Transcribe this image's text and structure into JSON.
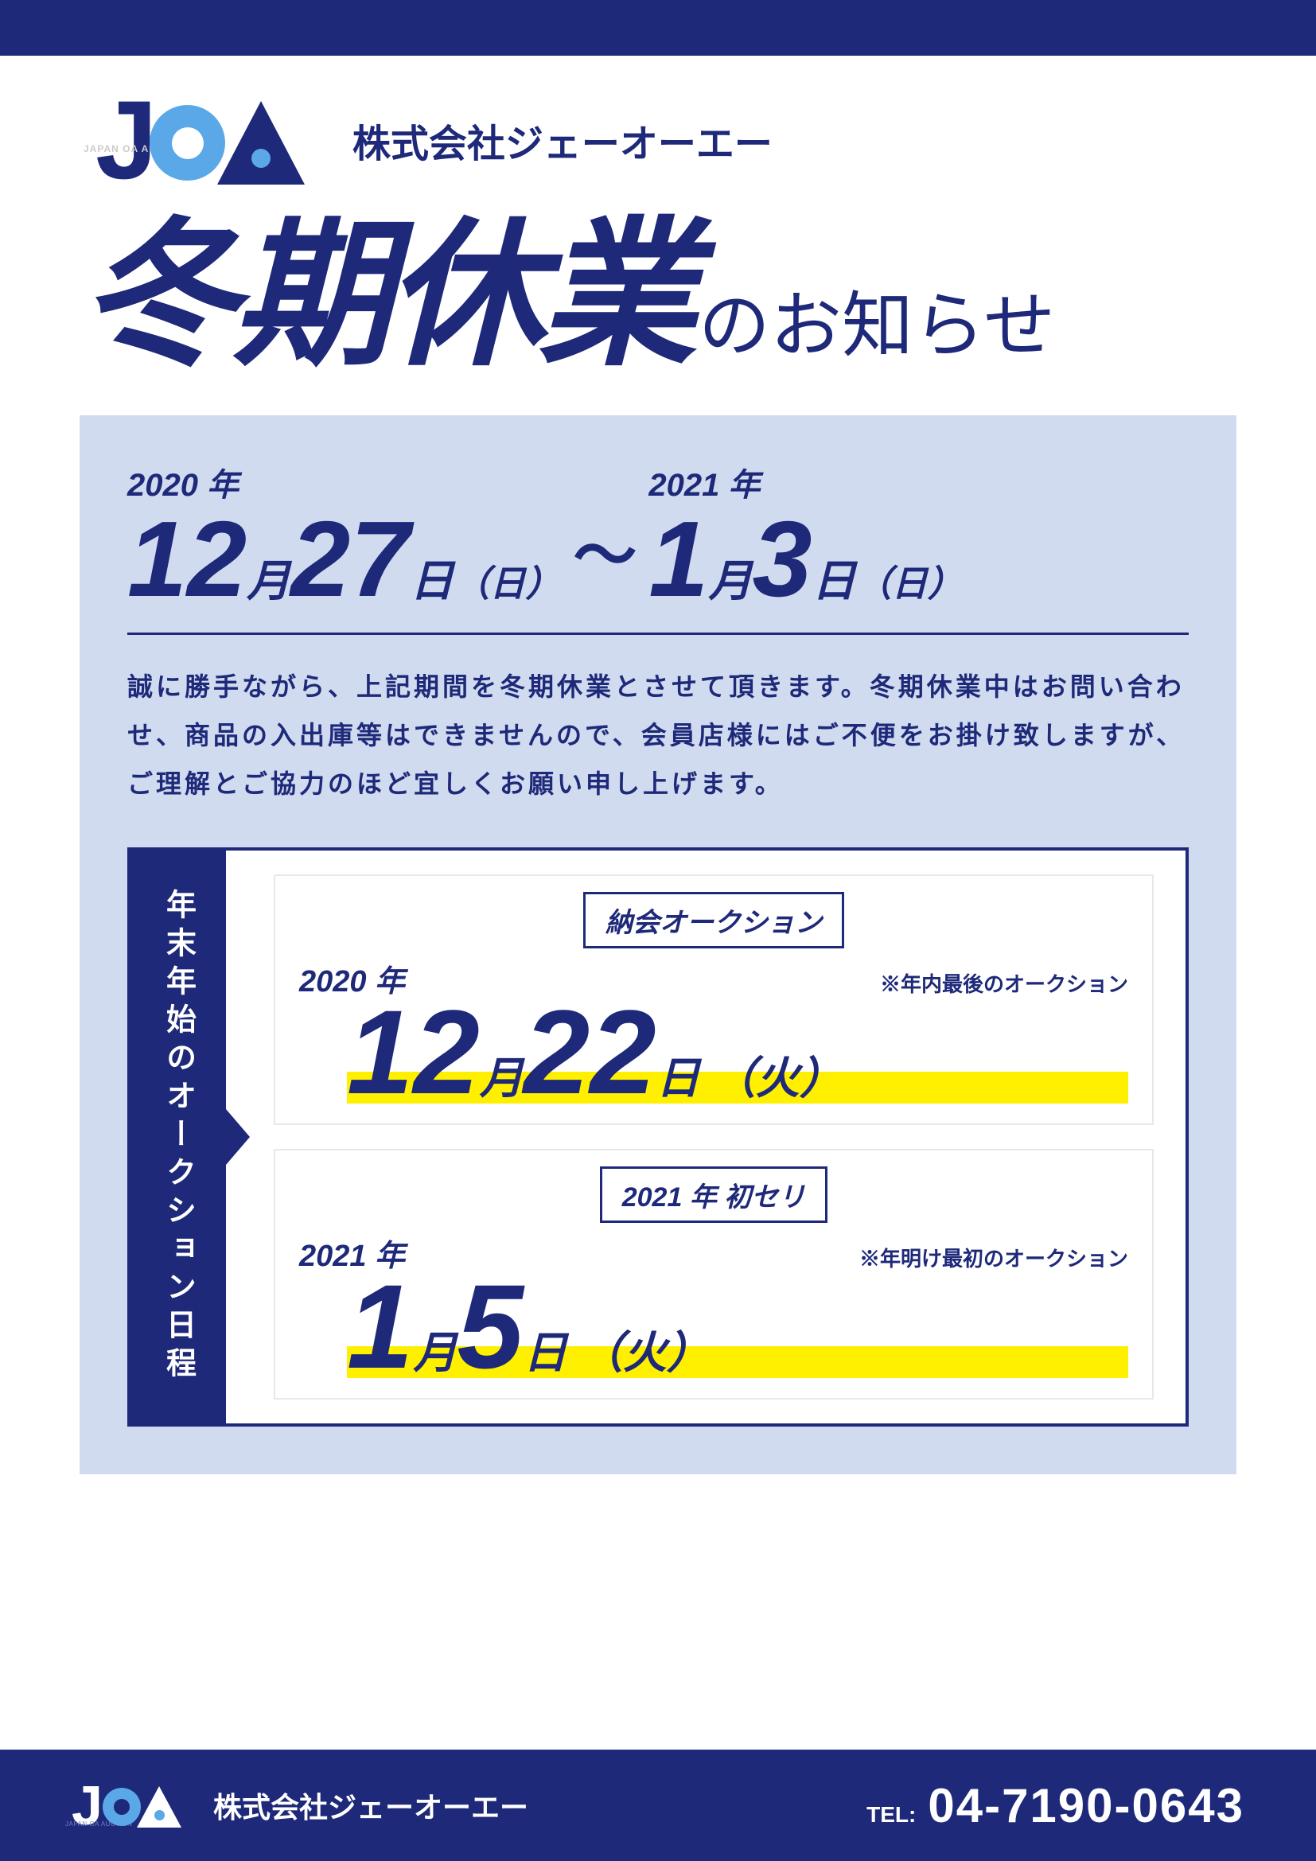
{
  "colors": {
    "primary": "#1e2979",
    "light_blue_panel": "#d0dbf0",
    "accent_light_blue": "#5aa8e8",
    "highlight_yellow": "#fff000",
    "white": "#ffffff"
  },
  "logo": {
    "tagline": "JAPAN OA AUCTION"
  },
  "header": {
    "company_name": "株式会社ジェーオーエー",
    "title_bold": "冬期休業",
    "title_rest": "のお知らせ"
  },
  "closure": {
    "from": {
      "year": "2020 年",
      "month": "12",
      "month_unit": "月",
      "day": "27",
      "day_unit": "日",
      "dow": "（日）"
    },
    "to": {
      "year": "2021 年",
      "month": "1",
      "month_unit": "月",
      "day": "3",
      "day_unit": "日",
      "dow": "（日）"
    },
    "separator": "～"
  },
  "notice": "誠に勝手ながら、上記期間を冬期休業とさせて頂きます。冬期休業中はお問い合わせ、商品の入出庫等はできませんので、会員店様にはご不便をお掛け致しますが、ご理解とご協力のほど宜しくお願い申し上げます。",
  "schedule": {
    "label": "年末年始のオークション日程",
    "items": [
      {
        "badge": "納会オークション",
        "year": "2020 年",
        "note": "※年内最後のオークション",
        "month": "12",
        "month_unit": "月",
        "day": "22",
        "day_unit": "日",
        "dow": "（火）"
      },
      {
        "badge": "2021 年 初セリ",
        "year": "2021 年",
        "note": "※年明け最初のオークション",
        "month": "1",
        "month_unit": "月",
        "day": "5",
        "day_unit": "日",
        "dow": "（火）"
      }
    ]
  },
  "footer": {
    "company_name": "株式会社ジェーオーエー",
    "tel_label": "TEL:",
    "tel_number": "04-7190-0643"
  }
}
